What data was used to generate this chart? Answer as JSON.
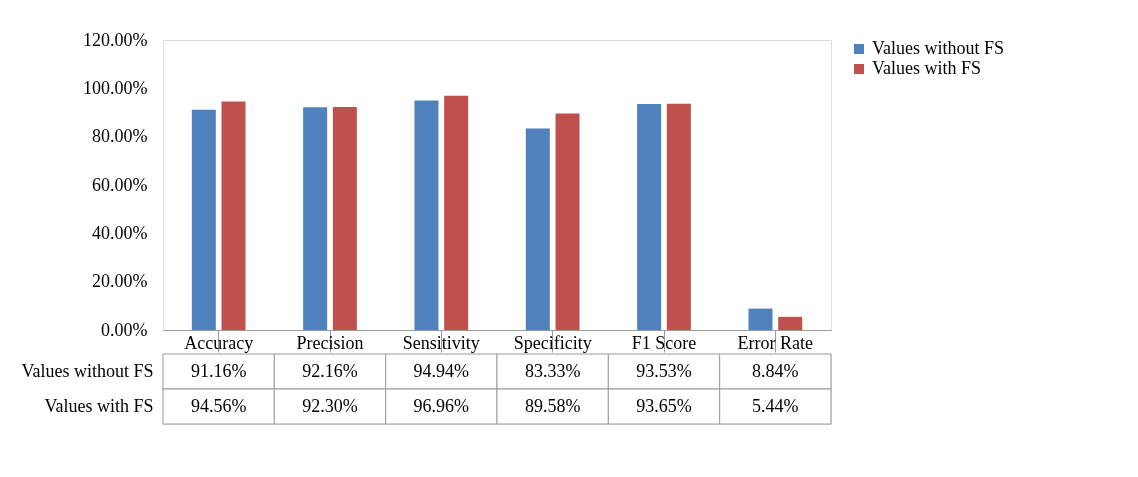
{
  "chart_data": {
    "type": "bar",
    "categories": [
      "Accuracy",
      "Precision",
      "Sensitivity",
      "Specificity",
      "F1 Score",
      "Error Rate"
    ],
    "series": [
      {
        "name": "Values without FS",
        "color": "#4f81bd",
        "values": [
          91.16,
          92.16,
          94.94,
          83.33,
          93.53,
          8.84
        ],
        "value_labels": [
          "91.16%",
          "92.16%",
          "94.94%",
          "83.33%",
          "93.53%",
          "8.84%"
        ]
      },
      {
        "name": "Values with FS",
        "color": "#c0504d",
        "values": [
          94.56,
          92.3,
          96.96,
          89.58,
          93.65,
          5.44
        ],
        "value_labels": [
          "94.56%",
          "92.30%",
          "96.96%",
          "89.58%",
          "93.65%",
          "5.44%"
        ]
      }
    ],
    "ylim": [
      0,
      120
    ],
    "yticks": [
      {
        "value": 0,
        "label": "0.00%"
      },
      {
        "value": 20,
        "label": "20.00%"
      },
      {
        "value": 40,
        "label": "40.00%"
      },
      {
        "value": 60,
        "label": "60.00%"
      },
      {
        "value": 80,
        "label": "80.00%"
      },
      {
        "value": 100,
        "label": "100.00%"
      },
      {
        "value": 120,
        "label": "120.00%"
      }
    ],
    "grid": false,
    "legend": "right"
  }
}
